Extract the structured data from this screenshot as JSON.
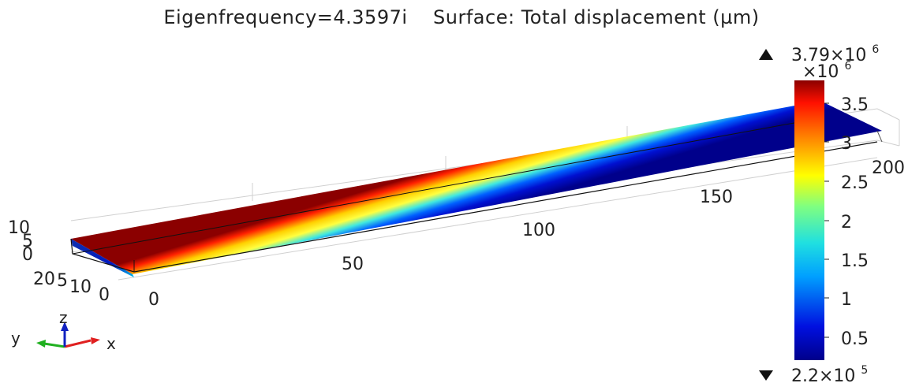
{
  "header": {
    "eigenfrequency": "Eigenfrequency=4.3597i",
    "surface": "Surface: Total displacement (µm)"
  },
  "colorbar": {
    "max_label": "3.79×10",
    "max_exp": "6",
    "scale_label": "×10",
    "scale_exp": "6",
    "min_label": "2.2×10",
    "min_exp": "5",
    "ticks": [
      "3.5",
      "3",
      "2.5",
      "2",
      "1.5",
      "1",
      "0.5"
    ]
  },
  "axes": {
    "x_ticks": [
      "0",
      "50",
      "100",
      "150",
      "200"
    ],
    "y_ticks": [
      "20",
      "10",
      "0"
    ],
    "y_tick_overlap": "5",
    "z_ticks": [
      "10",
      "5",
      "0"
    ]
  },
  "triad": {
    "x": "x",
    "y": "y",
    "z": "z"
  },
  "colors": {
    "low": "#00008b",
    "mid": "#00c8e8",
    "high": "#ffff00",
    "top": "#8b0000"
  }
}
